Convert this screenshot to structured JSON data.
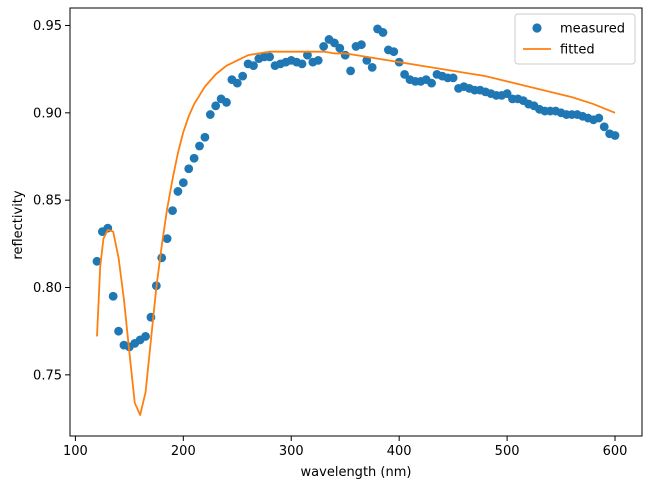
{
  "chart_data": {
    "type": "scatter",
    "title": "",
    "xlabel": "wavelength (nm)",
    "ylabel": "reflectivity",
    "xlim": [
      95,
      625
    ],
    "ylim": [
      0.715,
      0.96
    ],
    "xticks": [
      100,
      200,
      300,
      400,
      500,
      600
    ],
    "yticks": [
      0.75,
      0.8,
      0.85,
      0.9,
      0.95
    ],
    "xtick_labels": [
      "100",
      "200",
      "300",
      "400",
      "500",
      "600"
    ],
    "ytick_labels": [
      "0.75",
      "0.80",
      "0.85",
      "0.90",
      "0.95"
    ],
    "grid": false,
    "legend": {
      "placement": "top-right",
      "entries": [
        "measured",
        "fitted"
      ]
    },
    "series": [
      {
        "name": "measured",
        "kind": "scatter",
        "color": "#1f77b4",
        "x": [
          120,
          125,
          130,
          135,
          140,
          145,
          150,
          155,
          160,
          165,
          170,
          175,
          180,
          185,
          190,
          195,
          200,
          205,
          210,
          215,
          220,
          225,
          230,
          235,
          240,
          245,
          250,
          255,
          260,
          265,
          270,
          275,
          280,
          285,
          290,
          295,
          300,
          305,
          310,
          315,
          320,
          325,
          330,
          335,
          340,
          345,
          350,
          355,
          360,
          365,
          370,
          375,
          380,
          385,
          390,
          395,
          400,
          405,
          410,
          415,
          420,
          425,
          430,
          435,
          440,
          445,
          450,
          455,
          460,
          465,
          470,
          475,
          480,
          485,
          490,
          495,
          500,
          505,
          510,
          515,
          520,
          525,
          530,
          535,
          540,
          545,
          550,
          555,
          560,
          565,
          570,
          575,
          580,
          585,
          590,
          595,
          600
        ],
        "y": [
          0.815,
          0.832,
          0.834,
          0.795,
          0.775,
          0.767,
          0.766,
          0.768,
          0.77,
          0.772,
          0.783,
          0.801,
          0.817,
          0.828,
          0.844,
          0.855,
          0.86,
          0.868,
          0.874,
          0.881,
          0.886,
          0.899,
          0.904,
          0.908,
          0.906,
          0.919,
          0.917,
          0.921,
          0.928,
          0.927,
          0.931,
          0.932,
          0.932,
          0.927,
          0.928,
          0.929,
          0.93,
          0.929,
          0.928,
          0.933,
          0.929,
          0.93,
          0.938,
          0.942,
          0.94,
          0.937,
          0.933,
          0.924,
          0.938,
          0.939,
          0.93,
          0.926,
          0.948,
          0.946,
          0.936,
          0.935,
          0.929,
          0.922,
          0.919,
          0.918,
          0.918,
          0.919,
          0.917,
          0.922,
          0.921,
          0.92,
          0.92,
          0.914,
          0.915,
          0.914,
          0.913,
          0.913,
          0.912,
          0.911,
          0.91,
          0.91,
          0.911,
          0.908,
          0.908,
          0.907,
          0.905,
          0.904,
          0.902,
          0.901,
          0.901,
          0.901,
          0.9,
          0.899,
          0.899,
          0.899,
          0.898,
          0.897,
          0.896,
          0.897,
          0.892,
          0.888,
          0.887
        ]
      },
      {
        "name": "fitted",
        "kind": "line",
        "color": "#ff7f0e",
        "x": [
          120,
          123,
          126,
          130,
          135,
          140,
          145,
          150,
          155,
          160,
          165,
          170,
          175,
          180,
          185,
          190,
          195,
          200,
          205,
          210,
          220,
          230,
          240,
          250,
          260,
          270,
          280,
          290,
          300,
          310,
          320,
          330,
          340,
          350,
          360,
          370,
          380,
          390,
          400,
          420,
          440,
          460,
          480,
          500,
          520,
          540,
          560,
          580,
          600
        ],
        "y": [
          0.772,
          0.812,
          0.828,
          0.833,
          0.832,
          0.817,
          0.793,
          0.763,
          0.734,
          0.727,
          0.74,
          0.77,
          0.8,
          0.824,
          0.845,
          0.862,
          0.877,
          0.889,
          0.898,
          0.905,
          0.915,
          0.922,
          0.927,
          0.93,
          0.933,
          0.934,
          0.935,
          0.935,
          0.935,
          0.935,
          0.935,
          0.935,
          0.934,
          0.934,
          0.933,
          0.932,
          0.931,
          0.93,
          0.929,
          0.927,
          0.925,
          0.923,
          0.921,
          0.918,
          0.915,
          0.912,
          0.909,
          0.905,
          0.9
        ]
      }
    ]
  }
}
